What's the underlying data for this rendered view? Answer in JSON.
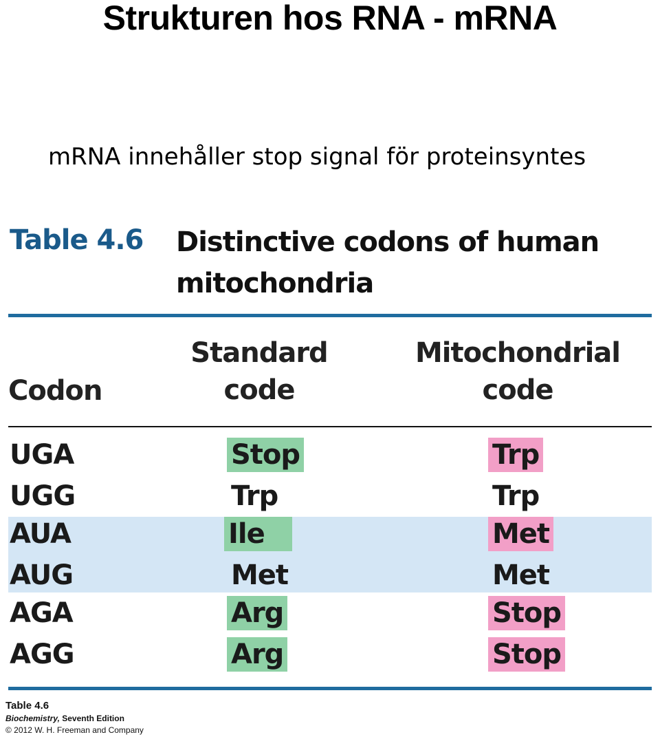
{
  "slide": {
    "title": "Strukturen hos RNA - mRNA",
    "subtitle": "mRNA innehåller stop signal för proteinsyntes"
  },
  "table": {
    "number": "Table 4.6",
    "title": "Distinctive codons of human mitochondria",
    "headers": {
      "codon": "Codon",
      "standard": "Standard code",
      "mito": "Mitochondrial code"
    },
    "rows": [
      {
        "codon": "UGA",
        "standard": "Stop",
        "standard_hl": "green",
        "mito": "Trp",
        "mito_hl": "pink"
      },
      {
        "codon": "UGG",
        "standard": "Trp",
        "standard_hl": "none",
        "mito": "Trp",
        "mito_hl": "none"
      },
      {
        "codon": "AUA",
        "standard": "Ile",
        "standard_hl": "green",
        "mito": "Met",
        "mito_hl": "pink"
      },
      {
        "codon": "AUG",
        "standard": "Met",
        "standard_hl": "none",
        "mito": "Met",
        "mito_hl": "none"
      },
      {
        "codon": "AGA",
        "standard": "Arg",
        "standard_hl": "green",
        "mito": "Stop",
        "mito_hl": "pink"
      },
      {
        "codon": "AGG",
        "standard": "Arg",
        "standard_hl": "green",
        "mito": "Stop",
        "mito_hl": "pink"
      }
    ]
  },
  "credit": {
    "line1": "Table 4.6",
    "line2_book": "Biochemistry,",
    "line2_edition": " Seventh Edition",
    "line3": "© 2012 W. H. Freeman and Company"
  },
  "colors": {
    "accent_blue": "#1f6c9f",
    "band_blue": "#d4e6f5",
    "highlight_green": "#8fd1a6",
    "highlight_pink": "#f29fc7"
  }
}
